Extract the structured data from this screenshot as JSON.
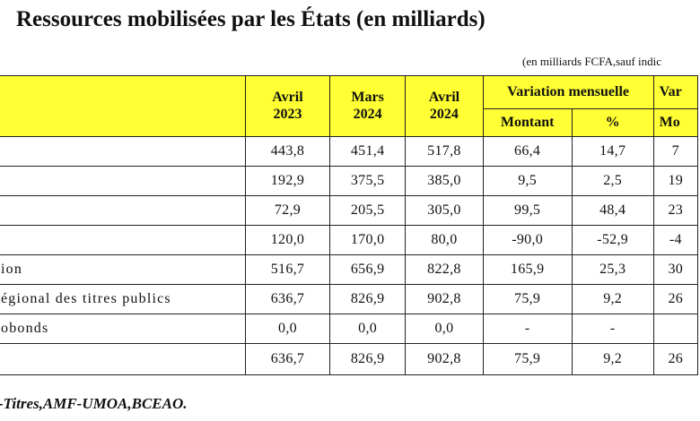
{
  "title": "Ressources mobilisées par les États (en milliards)",
  "unit_note": "(en milliards FCFA,sauf indic",
  "headers": {
    "col1_line1": "Avril",
    "col1_line2": "2023",
    "col2_line1": "Mars",
    "col2_line2": "2024",
    "col3_line1": "Avril",
    "col3_line2": "2024",
    "var_mensuelle": "Variation mensuelle",
    "var_other": "Var",
    "montant": "Montant",
    "pct": "%",
    "montant2": "Mo"
  },
  "rows": [
    {
      "label": "",
      "c1": "443,8",
      "c2": "451,4",
      "c3": "517,8",
      "m": "66,4",
      "p": "14,7",
      "m2": "7"
    },
    {
      "label": "",
      "c1": "192,9",
      "c2": "375,5",
      "c3": "385,0",
      "m": "9,5",
      "p": "2,5",
      "m2": "19"
    },
    {
      "label": "",
      "c1": "72,9",
      "c2": "205,5",
      "c3": "305,0",
      "m": "99,5",
      "p": "48,4",
      "m2": "23"
    },
    {
      "label": "",
      "c1": "120,0",
      "c2": "170,0",
      "c3": "80,0",
      "m": "-90,0",
      "p": "-52,9",
      "m2": "-4"
    },
    {
      "label": "ion",
      "c1": "516,7",
      "c2": "656,9",
      "c3": "822,8",
      "m": "165,9",
      "p": "25,3",
      "m2": "30"
    },
    {
      "label": "égional des titres publics",
      "c1": "636,7",
      "c2": "826,9",
      "c3": "902,8",
      "m": "75,9",
      "p": "9,2",
      "m2": "26"
    },
    {
      "label": "obonds",
      "c1": "0,0",
      "c2": "0,0",
      "c3": "0,0",
      "m": "-",
      "p": "-",
      "m2": ""
    },
    {
      "label": "",
      "c1": "636,7",
      "c2": "826,9",
      "c3": "902,8",
      "m": "75,9",
      "p": "9,2",
      "m2": "26"
    }
  ],
  "source": "-Titres,AMF-UMOA,BCEAO."
}
